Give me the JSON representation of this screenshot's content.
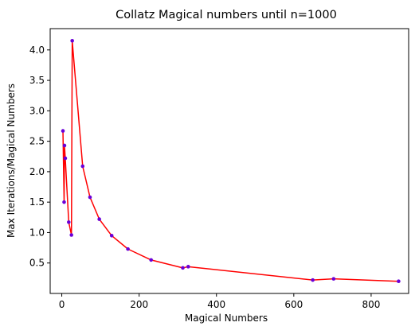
{
  "chart_data": {
    "type": "line",
    "title": "Collatz Magical numbers until n=1000",
    "xlabel": "Magical Numbers",
    "ylabel": "Max Iterations/Magical Numbers",
    "xlim": [
      -30,
      897
    ],
    "ylim": [
      0.0,
      4.35
    ],
    "xticks": [
      0,
      200,
      400,
      600,
      800
    ],
    "yticks": [
      0.5,
      1.0,
      1.5,
      2.0,
      2.5,
      3.0,
      3.5,
      4.0
    ],
    "xtick_labels": [
      "0",
      "200",
      "400",
      "600",
      "800"
    ],
    "ytick_labels": [
      "0.5",
      "1.0",
      "1.5",
      "2.0",
      "2.5",
      "3.0",
      "3.5",
      "4.0"
    ],
    "grid": false,
    "series": [
      {
        "line_color": "#ff0000",
        "marker_color": "#6a00d8",
        "x": [
          3,
          6,
          7,
          9,
          18,
          25,
          27,
          54,
          73,
          97,
          129,
          171,
          231,
          313,
          327,
          649,
          703,
          871
        ],
        "y": [
          2.67,
          1.5,
          2.43,
          2.22,
          1.17,
          0.96,
          4.15,
          2.09,
          1.58,
          1.22,
          0.95,
          0.73,
          0.55,
          0.42,
          0.44,
          0.22,
          0.24,
          0.2
        ]
      }
    ]
  }
}
